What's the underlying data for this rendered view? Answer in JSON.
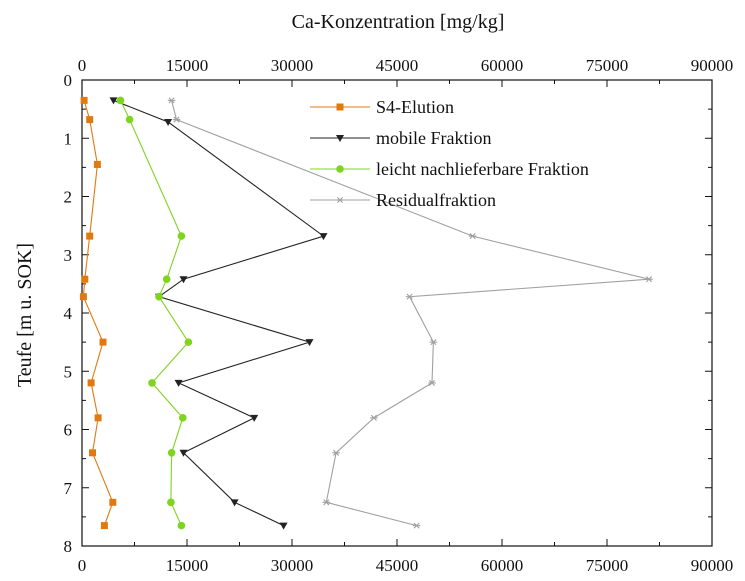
{
  "chart_data": {
    "type": "line",
    "title": "",
    "xlabel": "Ca-Konzentration [mg/kg]",
    "ylabel": "Teufe [m u. SOK]",
    "xlim": [
      0,
      90000
    ],
    "ylim": [
      0,
      8
    ],
    "y_inverted": true,
    "x_axis_top_and_bottom": true,
    "grid": false,
    "legend_position": "top-right",
    "x_ticks": [
      "0",
      "15000",
      "30000",
      "45000",
      "60000",
      "75000",
      "90000"
    ],
    "y_ticks": [
      "0",
      "1",
      "2",
      "3",
      "4",
      "5",
      "6",
      "7",
      "8"
    ],
    "series": [
      {
        "name": "S4-Elution",
        "color": "#e07a10",
        "marker": "square",
        "points": [
          {
            "x": 300,
            "y": 0.35
          },
          {
            "x": 1100,
            "y": 0.68
          },
          {
            "x": 2200,
            "y": 1.45
          },
          {
            "x": 1100,
            "y": 2.68
          },
          {
            "x": 400,
            "y": 3.42
          },
          {
            "x": 200,
            "y": 3.72
          },
          {
            "x": 3000,
            "y": 4.5
          },
          {
            "x": 1300,
            "y": 5.2
          },
          {
            "x": 2300,
            "y": 5.8
          },
          {
            "x": 1500,
            "y": 6.4
          },
          {
            "x": 4400,
            "y": 7.25
          },
          {
            "x": 3200,
            "y": 7.65
          }
        ]
      },
      {
        "name": "mobile Fraktion",
        "color": "#222222",
        "marker": "triangle-down",
        "points": [
          {
            "x": 4500,
            "y": 0.35
          },
          {
            "x": 12300,
            "y": 0.72
          },
          {
            "x": 34500,
            "y": 2.68
          },
          {
            "x": 14500,
            "y": 3.42
          },
          {
            "x": 11000,
            "y": 3.72
          },
          {
            "x": 32500,
            "y": 4.5
          },
          {
            "x": 13800,
            "y": 5.2
          },
          {
            "x": 24600,
            "y": 5.8
          },
          {
            "x": 14500,
            "y": 6.4
          },
          {
            "x": 21800,
            "y": 7.25
          },
          {
            "x": 28800,
            "y": 7.65
          }
        ]
      },
      {
        "name": "leicht nachlieferbare Fraktion",
        "color": "#7fd41e",
        "marker": "circle",
        "points": [
          {
            "x": 5500,
            "y": 0.35
          },
          {
            "x": 6800,
            "y": 0.68
          },
          {
            "x": 14200,
            "y": 2.68
          },
          {
            "x": 12100,
            "y": 3.42
          },
          {
            "x": 11000,
            "y": 3.72
          },
          {
            "x": 15200,
            "y": 4.5
          },
          {
            "x": 10000,
            "y": 5.2
          },
          {
            "x": 14400,
            "y": 5.8
          },
          {
            "x": 12800,
            "y": 6.4
          },
          {
            "x": 12700,
            "y": 7.25
          },
          {
            "x": 14200,
            "y": 7.65
          }
        ]
      },
      {
        "name": "Residualfraktion",
        "color": "#a0a0a0",
        "marker": "asterisk",
        "points": [
          {
            "x": 12800,
            "y": 0.35
          },
          {
            "x": 13500,
            "y": 0.68
          },
          {
            "x": 55800,
            "y": 2.68
          },
          {
            "x": 81000,
            "y": 3.42
          },
          {
            "x": 46800,
            "y": 3.72
          },
          {
            "x": 50200,
            "y": 4.5
          },
          {
            "x": 50000,
            "y": 5.2
          },
          {
            "x": 41700,
            "y": 5.8
          },
          {
            "x": 36300,
            "y": 6.4
          },
          {
            "x": 34900,
            "y": 7.25
          },
          {
            "x": 47800,
            "y": 7.65
          }
        ]
      }
    ]
  }
}
